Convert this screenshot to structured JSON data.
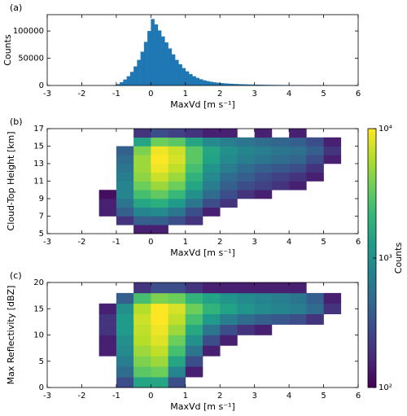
{
  "chart_data": [
    {
      "type": "histogram",
      "panel_label": "(a)",
      "xlabel": "MaxVd [m s⁻¹]",
      "ylabel": "Counts",
      "color": "#1f77b4",
      "bins": [
        -1.2,
        -1.1,
        -1.0,
        -0.9,
        -0.8,
        -0.7,
        -0.6,
        -0.5,
        -0.4,
        -0.3,
        -0.2,
        -0.1,
        0,
        0.1,
        0.2,
        0.3,
        0.4,
        0.5,
        0.6,
        0.7,
        0.8,
        0.9,
        1.0,
        1.1,
        1.2,
        1.3,
        1.4,
        1.5,
        1.6,
        1.7,
        1.8,
        1.9,
        2.0,
        2.1,
        2.2,
        2.3,
        2.4,
        2.5,
        2.6,
        2.7,
        2.8,
        2.9,
        3.0,
        3.1,
        3.2,
        3.3,
        3.4,
        3.5,
        3.6,
        3.7,
        3.8,
        3.9,
        4.0,
        4.1,
        4.2,
        4.3,
        4.4,
        4.5,
        4.6,
        4.7,
        4.8,
        4.9,
        5.0,
        5.1,
        5.2
      ],
      "values": [
        200,
        800,
        2500,
        6000,
        11000,
        17000,
        25000,
        35000,
        47000,
        62000,
        80000,
        100000,
        122000,
        112000,
        101000,
        90000,
        79000,
        68000,
        57000,
        47000,
        39000,
        32000,
        26000,
        21000,
        17000,
        14000,
        11500,
        9500,
        8000,
        6800,
        5800,
        5000,
        4400,
        3900,
        3500,
        3100,
        2800,
        2500,
        2300,
        2100,
        1900,
        1700,
        1600,
        1450,
        1300,
        1200,
        1100,
        1000,
        950,
        900,
        850,
        800,
        750,
        700,
        650,
        620,
        600,
        570,
        540,
        520,
        500,
        480,
        450,
        300
      ],
      "xlim": [
        -3,
        6
      ],
      "xticks": [
        -3,
        -2,
        -1,
        0,
        1,
        2,
        3,
        4,
        5,
        6
      ],
      "ylim": [
        0,
        130000
      ],
      "yticks": [
        0,
        50000,
        100000
      ]
    },
    {
      "type": "heatmap",
      "panel_label": "(b)",
      "xlabel": "MaxVd [m s⁻¹]",
      "ylabel": "Cloud-Top Height [km]",
      "xbins": [
        -1.5,
        -1,
        -0.5,
        0,
        0.5,
        1,
        1.5,
        2,
        2.5,
        3,
        3.5,
        4,
        4.5,
        5,
        5.5
      ],
      "ybins": [
        5,
        6,
        7,
        8,
        9,
        10,
        11,
        12,
        13,
        14,
        15,
        16,
        17
      ],
      "z": [
        [
          null,
          null,
          150,
          150,
          null,
          null,
          null,
          null,
          null,
          null,
          null,
          null,
          null,
          null
        ],
        [
          null,
          200,
          400,
          400,
          300,
          200,
          null,
          null,
          null,
          null,
          null,
          null,
          null,
          null
        ],
        [
          150,
          400,
          800,
          900,
          600,
          300,
          150,
          null,
          null,
          null,
          null,
          null,
          null,
          null
        ],
        [
          150,
          600,
          1500,
          1800,
          1200,
          600,
          300,
          200,
          null,
          null,
          null,
          null,
          null,
          null
        ],
        [
          120,
          800,
          2500,
          3200,
          2200,
          1000,
          500,
          300,
          200,
          150,
          null,
          null,
          null,
          null
        ],
        [
          null,
          800,
          3500,
          5000,
          3500,
          1500,
          700,
          400,
          300,
          250,
          200,
          150,
          null,
          null
        ],
        [
          null,
          700,
          4500,
          7000,
          5000,
          2000,
          900,
          500,
          400,
          300,
          250,
          200,
          150,
          null
        ],
        [
          null,
          600,
          5000,
          9000,
          6500,
          2500,
          1100,
          700,
          500,
          400,
          350,
          300,
          200,
          null
        ],
        [
          null,
          500,
          5000,
          10000,
          7500,
          3000,
          1400,
          900,
          700,
          600,
          500,
          450,
          300,
          150
        ],
        [
          null,
          400,
          4000,
          9000,
          7000,
          3000,
          1500,
          1000,
          800,
          700,
          600,
          550,
          400,
          200
        ],
        [
          null,
          null,
          1500,
          3500,
          3000,
          1500,
          900,
          700,
          600,
          500,
          450,
          400,
          300,
          150
        ],
        [
          null,
          null,
          200,
          300,
          250,
          200,
          150,
          150,
          null,
          150,
          null,
          150,
          null,
          null
        ]
      ],
      "xlim": [
        -3,
        6
      ],
      "xticks": [
        -3,
        -2,
        -1,
        0,
        1,
        2,
        3,
        4,
        5,
        6
      ],
      "ylim": [
        5,
        17
      ],
      "yticks": [
        5,
        7,
        9,
        11,
        13,
        15,
        17
      ]
    },
    {
      "type": "heatmap",
      "panel_label": "(c)",
      "xlabel": "MaxVd [m s⁻¹]",
      "ylabel": "Max Reflectivity [dBZ]",
      "xbins": [
        -1.5,
        -1,
        -0.5,
        0,
        0.5,
        1,
        1.5,
        2,
        2.5,
        3,
        3.5,
        4,
        4.5,
        5,
        5.5
      ],
      "ybins": [
        0,
        2,
        4,
        6,
        8,
        10,
        12,
        14,
        16,
        18,
        20
      ],
      "z": [
        [
          null,
          300,
          1500,
          1500,
          300,
          null,
          null,
          null,
          null,
          null,
          null,
          null,
          null,
          null
        ],
        [
          null,
          500,
          3000,
          3500,
          800,
          150,
          null,
          null,
          null,
          null,
          null,
          null,
          null,
          null
        ],
        [
          null,
          700,
          4000,
          5000,
          1500,
          300,
          null,
          null,
          null,
          null,
          null,
          null,
          null,
          null
        ],
        [
          150,
          900,
          5000,
          6500,
          2500,
          600,
          150,
          null,
          null,
          null,
          null,
          null,
          null,
          null
        ],
        [
          150,
          1000,
          6000,
          8000,
          3500,
          1000,
          300,
          150,
          null,
          null,
          null,
          null,
          null,
          null
        ],
        [
          200,
          1200,
          6500,
          9000,
          5000,
          1600,
          600,
          300,
          200,
          150,
          null,
          null,
          null,
          null
        ],
        [
          200,
          1200,
          7000,
          10000,
          6500,
          2500,
          1200,
          700,
          500,
          400,
          350,
          300,
          200,
          null
        ],
        [
          150,
          1000,
          6000,
          10000,
          7500,
          3500,
          2000,
          1400,
          1100,
          900,
          800,
          700,
          500,
          200
        ],
        [
          null,
          400,
          2500,
          4000,
          3500,
          2000,
          1400,
          1100,
          900,
          800,
          700,
          600,
          400,
          150
        ],
        [
          null,
          null,
          200,
          300,
          300,
          200,
          150,
          150,
          150,
          150,
          150,
          150,
          null,
          null
        ]
      ],
      "xlim": [
        -3,
        6
      ],
      "xticks": [
        -3,
        -2,
        -1,
        0,
        1,
        2,
        3,
        4,
        5,
        6
      ],
      "ylim": [
        0,
        20
      ],
      "yticks": [
        0,
        5,
        10,
        15,
        20
      ]
    }
  ],
  "colorbar": {
    "label": "Counts",
    "colormap": "viridis",
    "log": true,
    "lim": [
      100,
      10000
    ],
    "ticks": [
      {
        "value": 100,
        "label": "10²"
      },
      {
        "value": 1000,
        "label": "10³"
      },
      {
        "value": 10000,
        "label": "10⁴"
      }
    ]
  }
}
